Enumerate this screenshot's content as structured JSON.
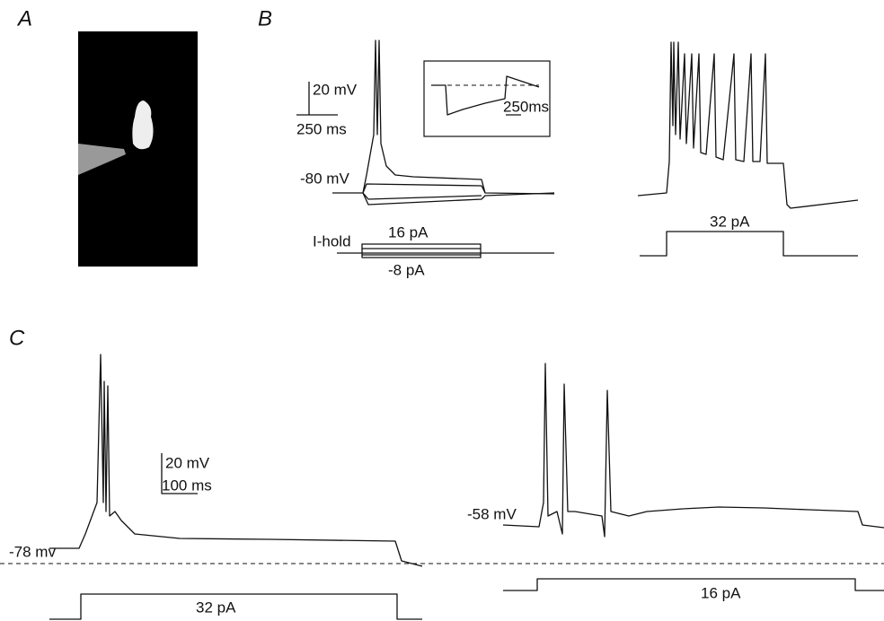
{
  "panel_a": {
    "label": "A"
  },
  "panel_b": {
    "label": "B",
    "voltage_scale": "20 mV",
    "time_scale": "250 ms",
    "resting_potential": "-80 mV",
    "inset_time_scale": "250ms",
    "holding_label": "I-hold",
    "max_current": "16 pA",
    "min_current": "-8 pA",
    "right_current": "32 pA"
  },
  "panel_c": {
    "label": "C",
    "left_potential": "-78 mv",
    "voltage_scale": "20 mV",
    "time_scale": "100 ms",
    "left_current": "32 pA",
    "right_potential": "-58 mV",
    "right_current": "16 pA"
  }
}
